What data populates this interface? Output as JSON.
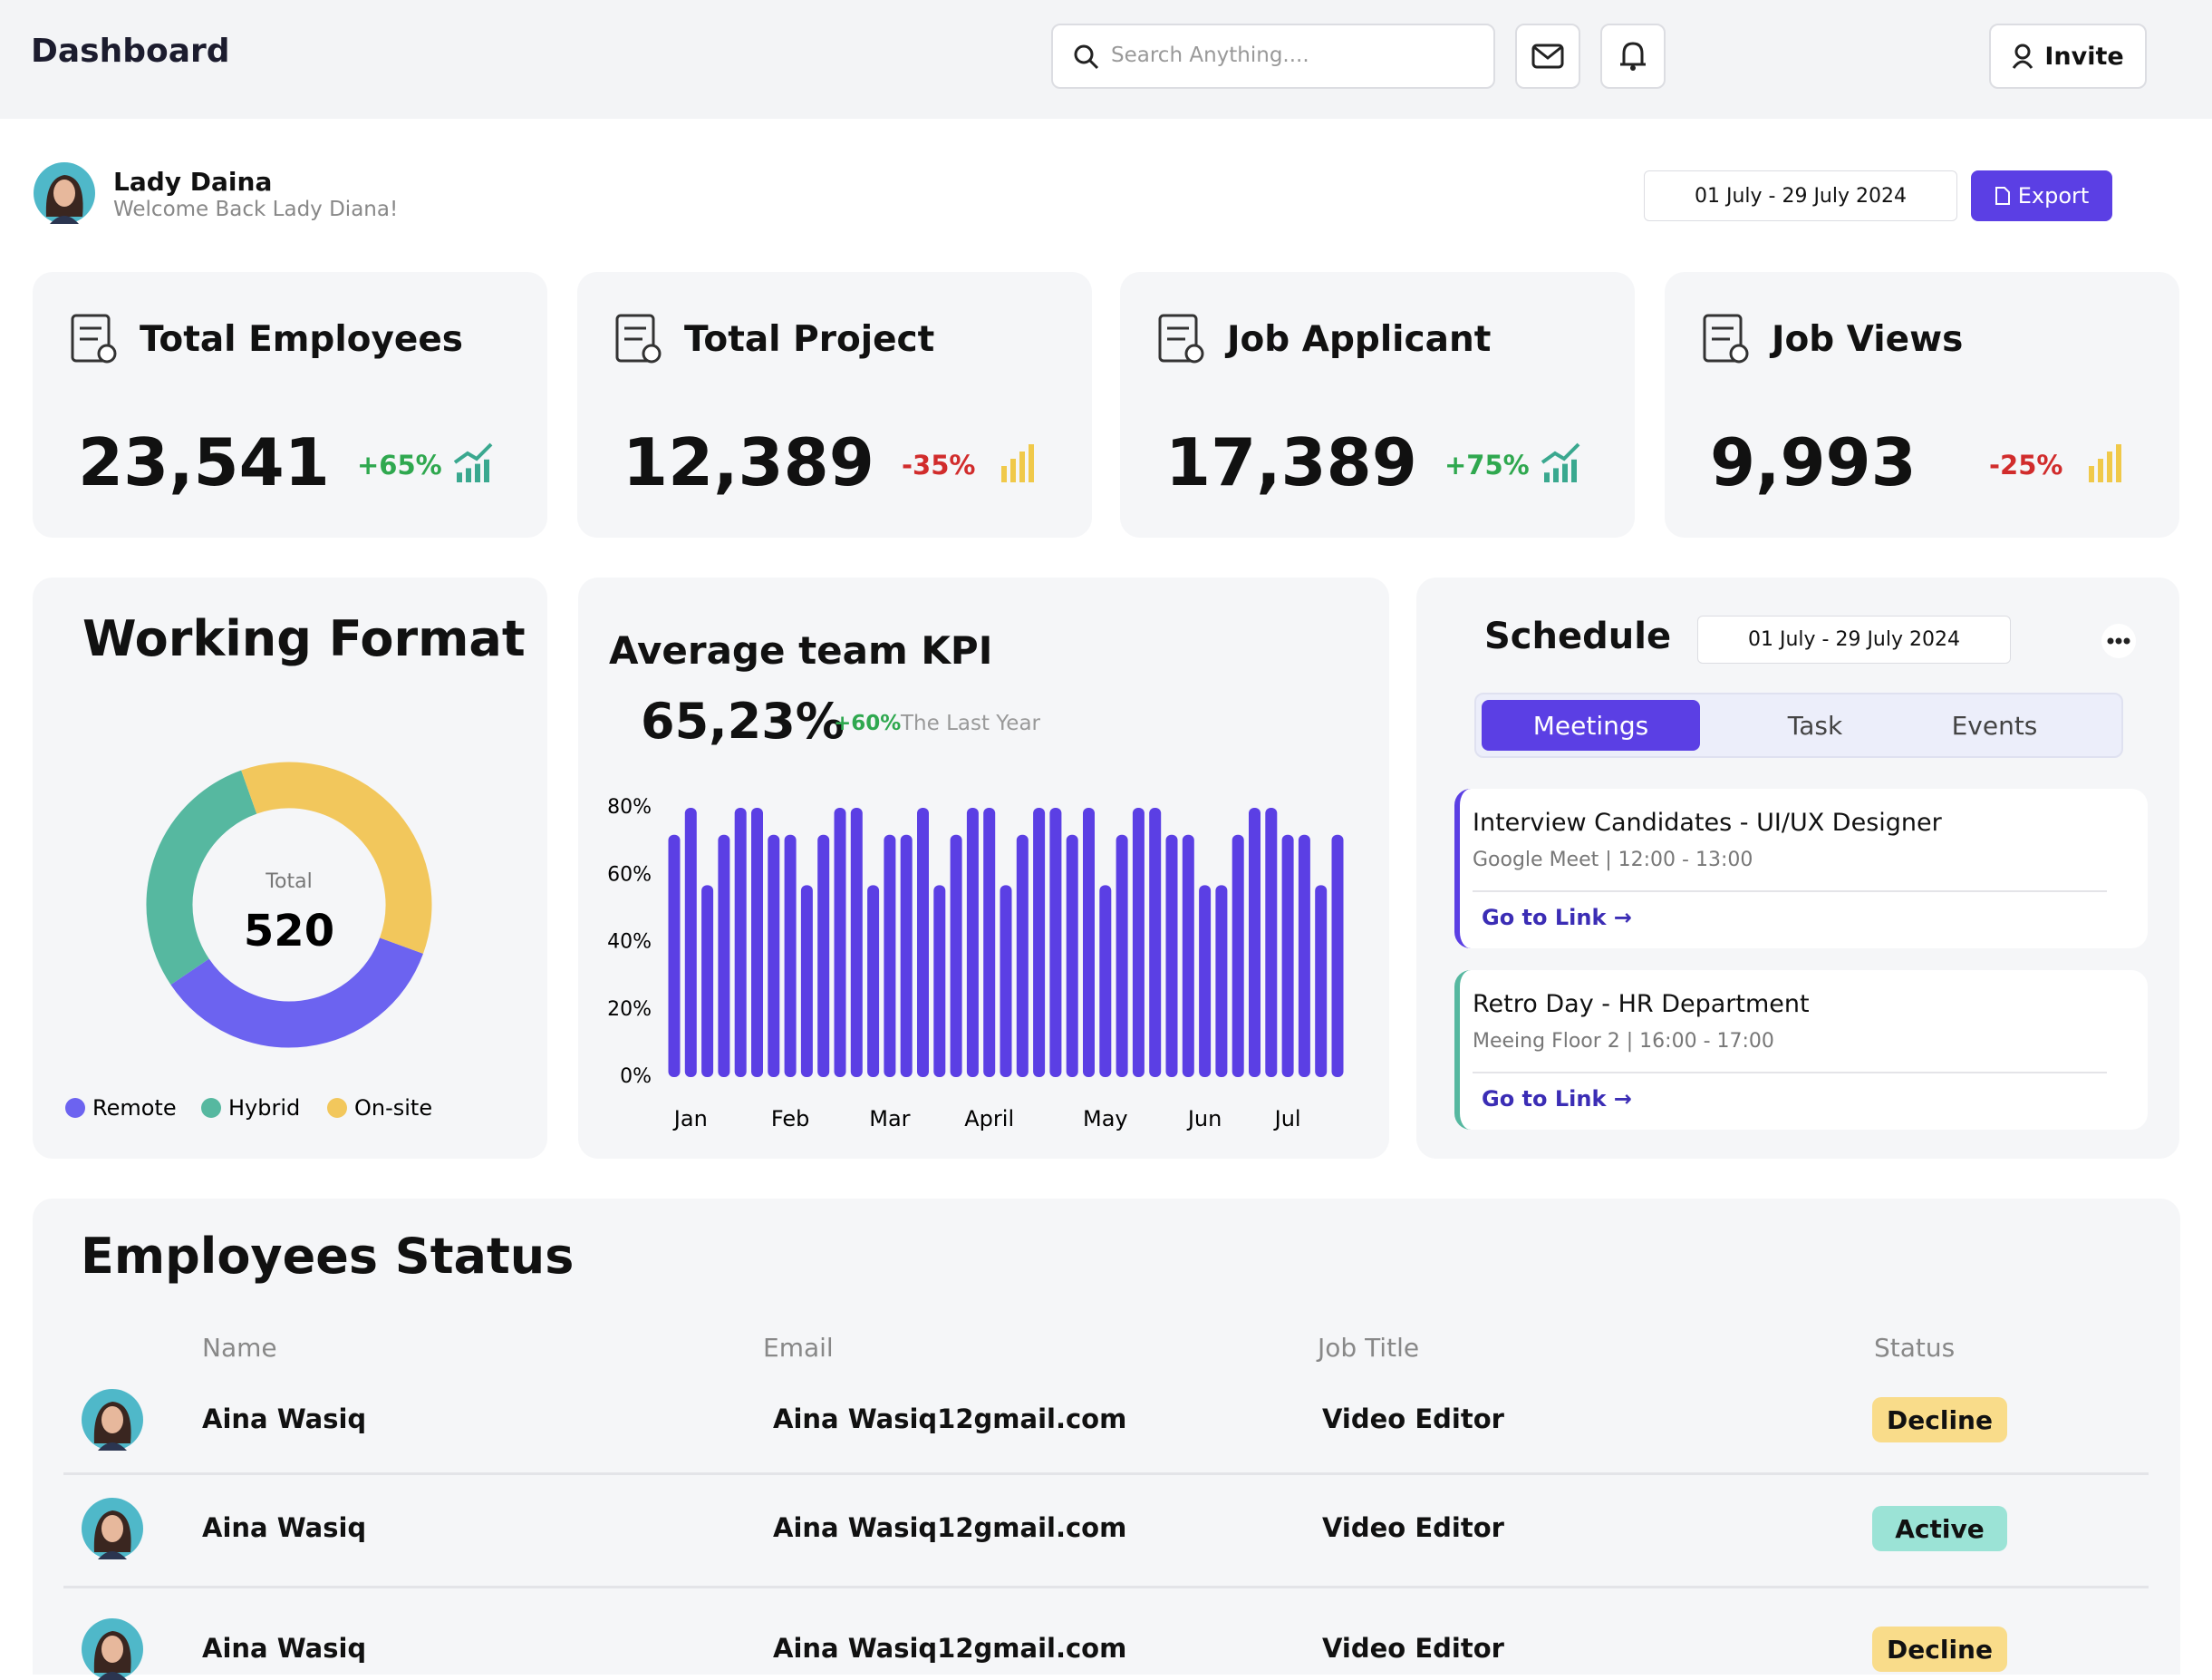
{
  "header": {
    "title": "Dashboard",
    "search_placeholder": "Search Anything....",
    "invite": "Invite"
  },
  "profile": {
    "name": "Lady Daina",
    "greeting": "Welcome Back Lady Diana!",
    "date_range": "01 July - 29 July 2024",
    "export": "Export"
  },
  "stats": [
    {
      "title": "Total Employees",
      "value": "23,541",
      "change": "+65%",
      "change_color": "#2fa84f",
      "trend_color": "#3aa88f"
    },
    {
      "title": "Total Project",
      "value": "12,389",
      "change": "-35%",
      "change_color": "#d12c2c",
      "trend_color": "#f0c94a"
    },
    {
      "title": "Job Applicant",
      "value": "17,389",
      "change": "+75%",
      "change_color": "#2fa84f",
      "trend_color": "#3aa88f"
    },
    {
      "title": "Job Views",
      "value": "9,993",
      "change": "-25%",
      "change_color": "#d12c2c",
      "trend_color": "#f0c94a"
    }
  ],
  "chart_data": [
    {
      "type": "donut",
      "title": "Working Format",
      "center_label": "Total",
      "center_value": 520,
      "categories": [
        "Remote",
        "Hybrid",
        "On-site"
      ],
      "values": [
        35,
        29,
        36
      ],
      "colors": [
        "#6c63f0",
        "#56b8a0",
        "#f2c75c"
      ]
    },
    {
      "type": "bar",
      "title": "Average team KPI",
      "headline": "65,23%",
      "change": "+60%",
      "change_note": "The Last Year",
      "categories": [
        null,
        "Jan",
        null,
        null,
        null,
        null,
        null,
        "Feb",
        null,
        null,
        null,
        null,
        null,
        "Mar",
        null,
        null,
        null,
        null,
        null,
        "April",
        null,
        null,
        null,
        null,
        null,
        null,
        "May",
        null,
        null,
        null,
        null,
        null,
        "Jun",
        null,
        null,
        null,
        null,
        "Jul",
        null,
        null,
        null
      ],
      "values": [
        72,
        80,
        57,
        72,
        80,
        80,
        72,
        72,
        57,
        72,
        80,
        80,
        57,
        72,
        72,
        80,
        57,
        72,
        80,
        80,
        57,
        72,
        80,
        80,
        72,
        80,
        57,
        72,
        80,
        80,
        72,
        72,
        57,
        57,
        72,
        80,
        80,
        72,
        72,
        57,
        72
      ],
      "color": "#5b3fe4",
      "ylim": [
        0,
        80
      ],
      "grid": false,
      "yticks": [
        {
          "value": 0,
          "label": "0%"
        },
        {
          "value": 20,
          "label": "20%"
        },
        {
          "value": 40,
          "label": "40%"
        },
        {
          "value": 60,
          "label": "60%"
        },
        {
          "value": 80,
          "label": "80%"
        }
      ]
    }
  ],
  "schedule": {
    "title": "Schedule",
    "date_range": "01 July - 29 July 2024",
    "tabs": [
      "Meetings",
      "Task",
      "Events"
    ],
    "events": [
      {
        "title": "Interview Candidates - UI/UX Designer",
        "details": "Google Meet | 12:00 - 13:00",
        "link": "Go to Link →",
        "color": "#5b3fe4"
      },
      {
        "title": "Retro Day - HR Department",
        "details": "Meeing Floor 2  | 16:00 - 17:00",
        "link": "Go to Link →",
        "color": "#56b8a0"
      }
    ]
  },
  "employees": {
    "title": "Employees Status",
    "columns": [
      "Name",
      "Email",
      "Job Title",
      "Status"
    ],
    "rows": [
      {
        "name": "Aina Wasiq",
        "email": "Aina Wasiq12gmail.com",
        "job": "Video Editor",
        "status": "Decline",
        "status_color": "#f9dc8a"
      },
      {
        "name": "Aina Wasiq",
        "email": "Aina Wasiq12gmail.com",
        "job": "Video Editor",
        "status": "Active",
        "status_color": "#9be3d6"
      },
      {
        "name": "Aina Wasiq",
        "email": "Aina Wasiq12gmail.com",
        "job": "Video Editor",
        "status": "Decline",
        "status_color": "#f9dc8a"
      }
    ]
  }
}
